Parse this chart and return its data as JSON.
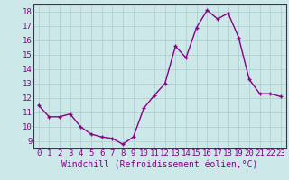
{
  "x": [
    0,
    1,
    2,
    3,
    4,
    5,
    6,
    7,
    8,
    9,
    10,
    11,
    12,
    13,
    14,
    15,
    16,
    17,
    18,
    19,
    20,
    21,
    22,
    23
  ],
  "y": [
    11.5,
    10.7,
    10.7,
    10.9,
    10.0,
    9.5,
    9.3,
    9.2,
    8.8,
    9.3,
    11.3,
    12.2,
    13.0,
    15.6,
    14.8,
    16.9,
    18.1,
    17.5,
    17.9,
    16.2,
    13.3,
    12.3,
    12.3,
    12.1
  ],
  "line_color": "#880088",
  "marker": "+",
  "bg_color": "#cce8e8",
  "grid_color": "#aacccc",
  "xlabel": "Windchill (Refroidissement éolien,°C)",
  "ylim": [
    8.5,
    18.5
  ],
  "yticks": [
    9,
    10,
    11,
    12,
    13,
    14,
    15,
    16,
    17,
    18
  ],
  "xticks": [
    0,
    1,
    2,
    3,
    4,
    5,
    6,
    7,
    8,
    9,
    10,
    11,
    12,
    13,
    14,
    15,
    16,
    17,
    18,
    19,
    20,
    21,
    22,
    23
  ],
  "xlabel_fontsize": 7,
  "tick_fontsize": 6.5,
  "line_width": 1.0
}
